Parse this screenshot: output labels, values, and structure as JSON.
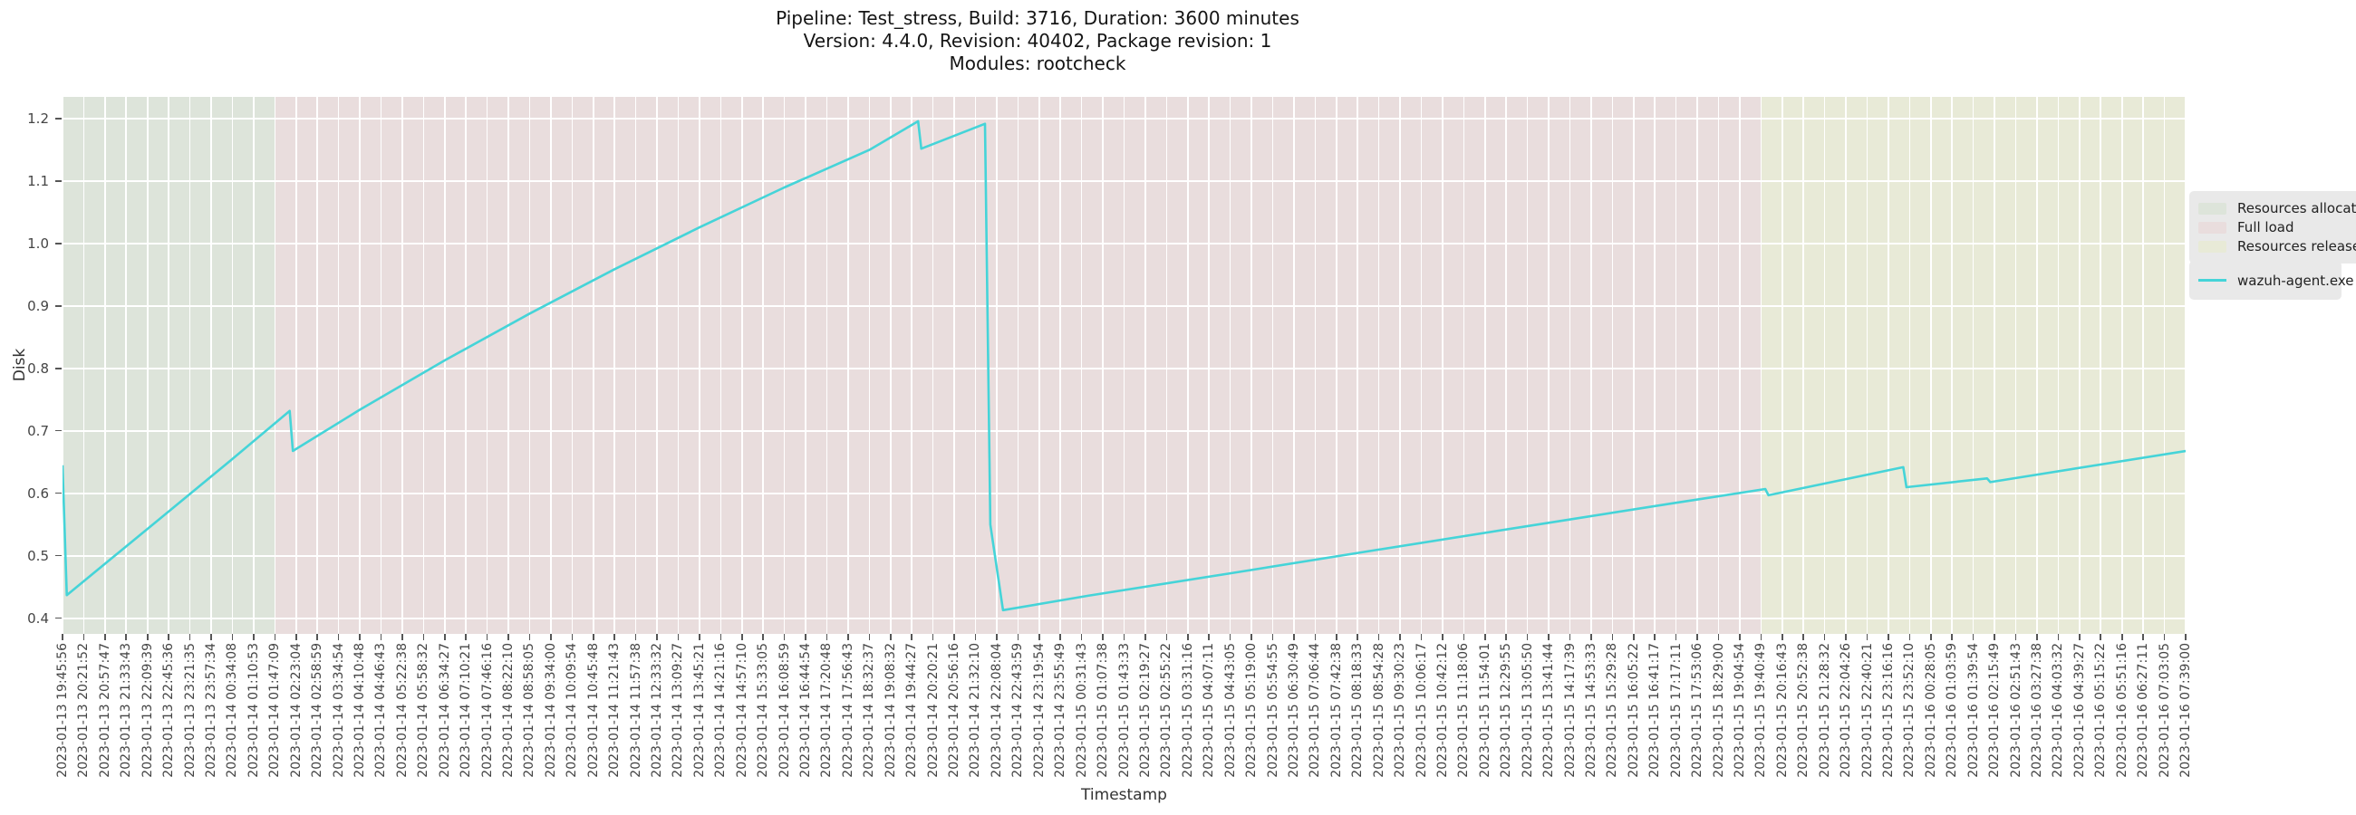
{
  "title": {
    "line1": "Pipeline: Test_stress, Build: 3716, Duration: 3600 minutes",
    "line2": "Version: 4.4.0, Revision: 40402, Package revision: 1",
    "line3": "Modules: rootcheck"
  },
  "colors": {
    "grid": "#ffffff",
    "tick_text": "#454545",
    "legend_bg": "#e9e9e9"
  },
  "chart_data": {
    "type": "line",
    "title": "Pipeline: Test_stress, Build: 3716, Duration: 3600 minutes | Version: 4.4.0, Revision: 40402, Package revision: 1 | Modules: rootcheck",
    "xlabel": "Timestamp",
    "ylabel": "Disk",
    "ylim": [
      0.375,
      1.235
    ],
    "yticks": [
      0.4,
      0.5,
      0.6,
      0.7,
      0.8,
      0.9,
      1.0,
      1.1,
      1.2
    ],
    "grid": true,
    "legend_position": "right-outside",
    "x_tick_labels": [
      "2023-01-13 19:45:56",
      "2023-01-13 20:21:52",
      "2023-01-13 20:57:47",
      "2023-01-13 21:33:43",
      "2023-01-13 22:09:39",
      "2023-01-13 22:45:36",
      "2023-01-13 23:21:35",
      "2023-01-13 23:57:34",
      "2023-01-14 00:34:08",
      "2023-01-14 01:10:53",
      "2023-01-14 01:47:09",
      "2023-01-14 02:23:04",
      "2023-01-14 02:58:59",
      "2023-01-14 03:34:54",
      "2023-01-14 04:10:48",
      "2023-01-14 04:46:43",
      "2023-01-14 05:22:38",
      "2023-01-14 05:58:32",
      "2023-01-14 06:34:27",
      "2023-01-14 07:10:21",
      "2023-01-14 07:46:16",
      "2023-01-14 08:22:10",
      "2023-01-14 08:58:05",
      "2023-01-14 09:34:00",
      "2023-01-14 10:09:54",
      "2023-01-14 10:45:48",
      "2023-01-14 11:21:43",
      "2023-01-14 11:57:38",
      "2023-01-14 12:33:32",
      "2023-01-14 13:09:27",
      "2023-01-14 13:45:21",
      "2023-01-14 14:21:16",
      "2023-01-14 14:57:10",
      "2023-01-14 15:33:05",
      "2023-01-14 16:08:59",
      "2023-01-14 16:44:54",
      "2023-01-14 17:20:48",
      "2023-01-14 17:56:43",
      "2023-01-14 18:32:37",
      "2023-01-14 19:08:32",
      "2023-01-14 19:44:27",
      "2023-01-14 20:20:21",
      "2023-01-14 20:56:16",
      "2023-01-14 21:32:10",
      "2023-01-14 22:08:04",
      "2023-01-14 22:43:59",
      "2023-01-14 23:19:54",
      "2023-01-14 23:55:49",
      "2023-01-15 00:31:43",
      "2023-01-15 01:07:38",
      "2023-01-15 01:43:33",
      "2023-01-15 02:19:27",
      "2023-01-15 02:55:22",
      "2023-01-15 03:31:16",
      "2023-01-15 04:07:11",
      "2023-01-15 04:43:05",
      "2023-01-15 05:19:00",
      "2023-01-15 05:54:55",
      "2023-01-15 06:30:49",
      "2023-01-15 07:06:44",
      "2023-01-15 07:42:38",
      "2023-01-15 08:18:33",
      "2023-01-15 08:54:28",
      "2023-01-15 09:30:23",
      "2023-01-15 10:06:17",
      "2023-01-15 10:42:12",
      "2023-01-15 11:18:06",
      "2023-01-15 11:54:01",
      "2023-01-15 12:29:55",
      "2023-01-15 13:05:50",
      "2023-01-15 13:41:44",
      "2023-01-15 14:17:39",
      "2023-01-15 14:53:33",
      "2023-01-15 15:29:28",
      "2023-01-15 16:05:22",
      "2023-01-15 16:41:17",
      "2023-01-15 17:17:11",
      "2023-01-15 17:53:06",
      "2023-01-15 18:29:00",
      "2023-01-15 19:04:54",
      "2023-01-15 19:40:49",
      "2023-01-15 20:16:43",
      "2023-01-15 20:52:38",
      "2023-01-15 21:28:32",
      "2023-01-15 22:04:26",
      "2023-01-15 22:40:21",
      "2023-01-15 23:16:16",
      "2023-01-15 23:52:10",
      "2023-01-16 00:28:05",
      "2023-01-16 01:03:59",
      "2023-01-16 01:39:54",
      "2023-01-16 02:15:49",
      "2023-01-16 02:51:43",
      "2023-01-16 03:27:38",
      "2023-01-16 04:03:32",
      "2023-01-16 04:39:27",
      "2023-01-16 05:15:22",
      "2023-01-16 05:51:16",
      "2023-01-16 06:27:11",
      "2023-01-16 07:03:05",
      "2023-01-16 07:39:00"
    ],
    "regions": [
      {
        "label": "Resources allocation",
        "start_index": 0,
        "end_index": 10,
        "start_label": "2023-01-13 19:45:56",
        "end_label": "2023-01-14 01:47:09",
        "color": "#dde4da"
      },
      {
        "label": "Full load",
        "start_index": 10,
        "end_index": 80,
        "start_label": "2023-01-14 01:47:09",
        "end_label": "2023-01-15 19:40:49",
        "color": "#e9dddd"
      },
      {
        "label": "Resources release",
        "start_index": 80,
        "end_index": 100,
        "start_label": "2023-01-15 19:40:49",
        "end_label": "2023-01-16 07:39:00",
        "color": "#e8ead7"
      }
    ],
    "series": [
      {
        "name": "wazuh-agent.exe",
        "color": "#45d4d8",
        "x_unit": "x_tick_index",
        "points": [
          [
            0.0,
            0.645
          ],
          [
            0.2,
            0.437
          ],
          [
            4.5,
            0.557
          ],
          [
            8.0,
            0.655
          ],
          [
            10.7,
            0.732
          ],
          [
            10.85,
            0.668
          ],
          [
            14,
            0.734
          ],
          [
            18,
            0.813
          ],
          [
            22,
            0.888
          ],
          [
            26,
            0.959
          ],
          [
            30,
            1.026
          ],
          [
            34,
            1.09
          ],
          [
            38,
            1.15
          ],
          [
            40.3,
            1.196
          ],
          [
            40.45,
            1.152
          ],
          [
            43.45,
            1.192
          ],
          [
            43.7,
            0.55
          ],
          [
            44.3,
            0.413
          ],
          [
            48.3,
            0.436
          ],
          [
            55,
            0.472
          ],
          [
            62,
            0.51
          ],
          [
            70,
            0.553
          ],
          [
            76,
            0.585
          ],
          [
            80.2,
            0.607
          ],
          [
            80.35,
            0.597
          ],
          [
            86.7,
            0.642
          ],
          [
            86.85,
            0.61
          ],
          [
            90.65,
            0.624
          ],
          [
            90.8,
            0.618
          ],
          [
            100,
            0.668
          ]
        ]
      }
    ]
  }
}
